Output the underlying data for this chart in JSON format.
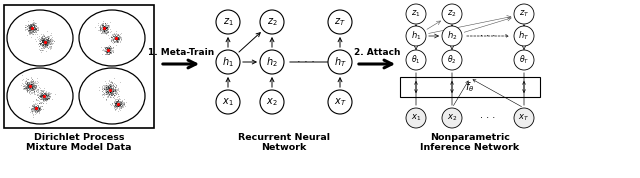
{
  "background_color": "#ffffff",
  "panel1_label_line1": "Dirichlet Process",
  "panel1_label_line2": "Mixture Model Data",
  "panel2_label_line1": "Recurrent Neural",
  "panel2_label_line2": "Network",
  "panel3_label_line1": "Nonparametric",
  "panel3_label_line2": "Inference Network",
  "arrow1_label": "1. Meta-Train",
  "arrow2_label": "2. Attach",
  "fig_width": 6.4,
  "fig_height": 1.78,
  "dpi": 100
}
